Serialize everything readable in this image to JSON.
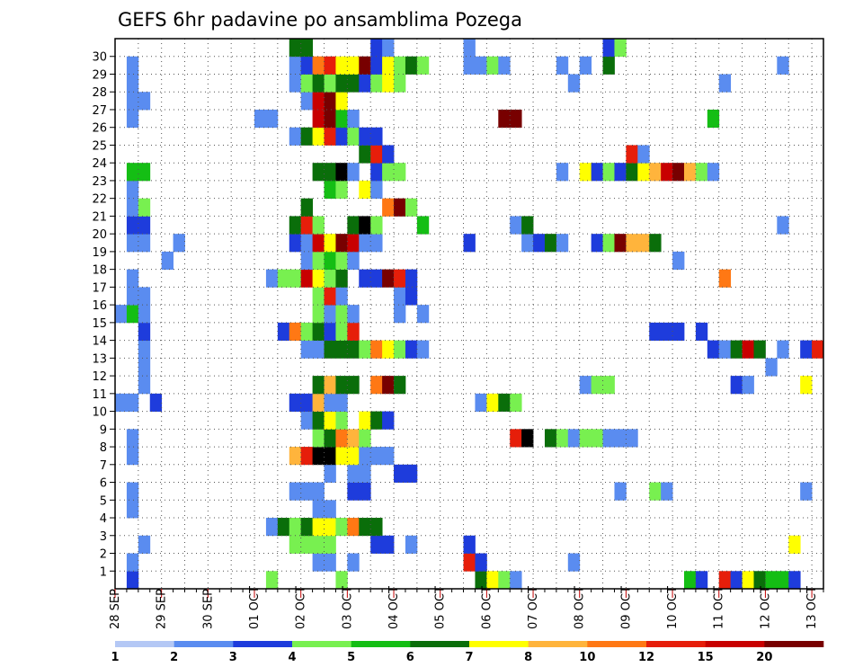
{
  "chart_data": {
    "type": "heatmap",
    "title": "GEFS 6hr padavine po ansamblima Pozega",
    "xlabel": "",
    "ylabel": "",
    "x_tick_labels": [
      "28 SEP",
      "29 SEP",
      "30 SEP",
      "01 OCT",
      "02 OCT",
      "03 OCT",
      "04 OCT",
      "05 OCT",
      "06 OCT",
      "07 OCT",
      "08 OCT",
      "09 OCT",
      "10 OCT",
      "11 OCT",
      "12 OCT",
      "13 OCT"
    ],
    "y_tick_labels": [
      "1",
      "2",
      "3",
      "4",
      "5",
      "6",
      "7",
      "8",
      "9",
      "10",
      "11",
      "12",
      "13",
      "14",
      "15",
      "16",
      "17",
      "18",
      "19",
      "20",
      "21",
      "22",
      "23",
      "24",
      "25",
      "26",
      "27",
      "28",
      "29",
      "30"
    ],
    "members": [
      0,
      1,
      2,
      3,
      4,
      5,
      6,
      7,
      8,
      9,
      10,
      11,
      12,
      13,
      14,
      15,
      16,
      17,
      18,
      19,
      20,
      21,
      22,
      23,
      24,
      25,
      26,
      27,
      28,
      29,
      30
    ],
    "time_step_hours": 6,
    "time_steps": 61,
    "grid": true,
    "legend_position": "bottom",
    "colorbar": {
      "boundaries": [
        "1",
        "2",
        "3",
        "4",
        "5",
        "6",
        "7",
        "8",
        "10",
        "12",
        "15",
        "20"
      ],
      "colors": [
        "#b4c8f5",
        "#5a8cf0",
        "#1e3cdc",
        "#78f050",
        "#14be14",
        "#0a6e0a",
        "#ffff00",
        "#ffb43c",
        "#ff7814",
        "#e61e0a",
        "#c80000",
        "#780000"
      ]
    },
    "cells": [
      [
        0,
        1,
        2
      ],
      [
        0,
        13,
        3
      ],
      [
        0,
        19,
        3
      ],
      [
        0,
        31,
        5
      ],
      [
        0,
        32,
        6
      ],
      [
        0,
        33,
        3
      ],
      [
        0,
        34,
        1
      ],
      [
        0,
        49,
        4
      ],
      [
        0,
        50,
        2
      ],
      [
        0,
        52,
        9
      ],
      [
        0,
        53,
        2
      ],
      [
        0,
        54,
        6
      ],
      [
        0,
        55,
        5
      ],
      [
        0,
        56,
        4
      ],
      [
        0,
        57,
        4
      ],
      [
        0,
        58,
        2
      ],
      [
        1,
        1,
        1
      ],
      [
        1,
        17,
        1
      ],
      [
        1,
        18,
        1
      ],
      [
        1,
        20,
        1
      ],
      [
        1,
        30,
        9
      ],
      [
        1,
        31,
        2
      ],
      [
        1,
        39,
        1
      ],
      [
        2,
        2,
        1
      ],
      [
        2,
        15,
        3
      ],
      [
        2,
        16,
        3
      ],
      [
        2,
        17,
        3
      ],
      [
        2,
        18,
        3
      ],
      [
        2,
        22,
        2
      ],
      [
        2,
        23,
        2
      ],
      [
        2,
        25,
        1
      ],
      [
        2,
        30,
        2
      ],
      [
        2,
        58,
        6
      ],
      [
        3,
        13,
        1
      ],
      [
        3,
        14,
        5
      ],
      [
        3,
        15,
        3
      ],
      [
        3,
        16,
        5
      ],
      [
        3,
        17,
        6
      ],
      [
        3,
        18,
        6
      ],
      [
        3,
        19,
        3
      ],
      [
        3,
        20,
        8
      ],
      [
        3,
        21,
        5
      ],
      [
        3,
        22,
        5
      ],
      [
        4,
        1,
        1
      ],
      [
        4,
        17,
        1
      ],
      [
        4,
        18,
        1
      ],
      [
        5,
        1,
        1
      ],
      [
        5,
        15,
        1
      ],
      [
        5,
        16,
        1
      ],
      [
        5,
        17,
        1
      ],
      [
        5,
        20,
        2
      ],
      [
        5,
        21,
        2
      ],
      [
        5,
        43,
        1
      ],
      [
        5,
        46,
        3
      ],
      [
        5,
        47,
        1
      ],
      [
        5,
        59,
        1
      ],
      [
        6,
        18,
        1
      ],
      [
        6,
        20,
        1
      ],
      [
        6,
        21,
        1
      ],
      [
        6,
        24,
        2
      ],
      [
        6,
        25,
        2
      ],
      [
        7,
        1,
        1
      ],
      [
        7,
        15,
        7
      ],
      [
        7,
        16,
        9
      ],
      [
        7,
        17,
        12
      ],
      [
        7,
        18,
        12
      ],
      [
        7,
        19,
        6
      ],
      [
        7,
        20,
        6
      ],
      [
        7,
        21,
        1
      ],
      [
        7,
        22,
        1
      ],
      [
        7,
        23,
        1
      ],
      [
        8,
        1,
        1
      ],
      [
        8,
        17,
        3
      ],
      [
        8,
        18,
        5
      ],
      [
        8,
        19,
        8
      ],
      [
        8,
        20,
        7
      ],
      [
        8,
        21,
        3
      ],
      [
        8,
        34,
        9
      ],
      [
        8,
        35,
        12
      ],
      [
        8,
        37,
        5
      ],
      [
        8,
        38,
        3
      ],
      [
        8,
        39,
        1
      ],
      [
        8,
        40,
        3
      ],
      [
        8,
        41,
        3
      ],
      [
        8,
        42,
        1
      ],
      [
        8,
        43,
        1
      ],
      [
        8,
        44,
        1
      ],
      [
        9,
        16,
        1
      ],
      [
        9,
        17,
        5
      ],
      [
        9,
        18,
        6
      ],
      [
        9,
        19,
        3
      ],
      [
        9,
        21,
        6
      ],
      [
        9,
        22,
        5
      ],
      [
        9,
        23,
        2
      ],
      [
        10,
        0,
        1
      ],
      [
        10,
        1,
        1
      ],
      [
        10,
        3,
        2
      ],
      [
        10,
        15,
        2
      ],
      [
        10,
        16,
        2
      ],
      [
        10,
        17,
        7
      ],
      [
        10,
        18,
        1
      ],
      [
        10,
        19,
        1
      ],
      [
        10,
        31,
        1
      ],
      [
        10,
        32,
        6
      ],
      [
        10,
        33,
        5
      ],
      [
        10,
        34,
        3
      ],
      [
        11,
        2,
        1
      ],
      [
        11,
        17,
        5
      ],
      [
        11,
        18,
        7
      ],
      [
        11,
        19,
        5
      ],
      [
        11,
        20,
        5
      ],
      [
        11,
        22,
        8
      ],
      [
        11,
        23,
        11
      ],
      [
        11,
        24,
        5
      ],
      [
        11,
        40,
        1
      ],
      [
        11,
        41,
        3
      ],
      [
        11,
        42,
        3
      ],
      [
        11,
        53,
        2
      ],
      [
        11,
        54,
        1
      ],
      [
        11,
        59,
        6
      ],
      [
        12,
        2,
        1
      ],
      [
        12,
        56,
        1
      ],
      [
        13,
        2,
        1
      ],
      [
        13,
        16,
        1
      ],
      [
        13,
        17,
        1
      ],
      [
        13,
        18,
        5
      ],
      [
        13,
        19,
        5
      ],
      [
        13,
        20,
        5
      ],
      [
        13,
        21,
        3
      ],
      [
        13,
        22,
        8
      ],
      [
        13,
        23,
        6
      ],
      [
        13,
        24,
        3
      ],
      [
        13,
        25,
        2
      ],
      [
        13,
        26,
        1
      ],
      [
        13,
        51,
        2
      ],
      [
        13,
        52,
        1
      ],
      [
        13,
        53,
        5
      ],
      [
        13,
        54,
        10
      ],
      [
        13,
        55,
        5
      ],
      [
        13,
        57,
        1
      ],
      [
        13,
        59,
        2
      ],
      [
        13,
        60,
        9
      ],
      [
        14,
        2,
        2
      ],
      [
        14,
        14,
        2
      ],
      [
        14,
        15,
        8
      ],
      [
        14,
        16,
        3
      ],
      [
        14,
        17,
        5
      ],
      [
        14,
        18,
        2
      ],
      [
        14,
        19,
        3
      ],
      [
        14,
        20,
        9
      ],
      [
        14,
        46,
        2
      ],
      [
        14,
        47,
        2
      ],
      [
        14,
        48,
        2
      ],
      [
        14,
        50,
        2
      ],
      [
        15,
        0,
        1
      ],
      [
        15,
        1,
        4
      ],
      [
        15,
        2,
        1
      ],
      [
        15,
        17,
        3
      ],
      [
        15,
        18,
        1
      ],
      [
        15,
        19,
        3
      ],
      [
        15,
        20,
        1
      ],
      [
        15,
        24,
        1
      ],
      [
        15,
        26,
        1
      ],
      [
        16,
        1,
        1
      ],
      [
        16,
        2,
        1
      ],
      [
        16,
        17,
        3
      ],
      [
        16,
        18,
        9
      ],
      [
        16,
        19,
        1
      ],
      [
        16,
        24,
        1
      ],
      [
        16,
        25,
        2
      ],
      [
        17,
        1,
        1
      ],
      [
        17,
        13,
        1
      ],
      [
        17,
        14,
        3
      ],
      [
        17,
        15,
        3
      ],
      [
        17,
        16,
        10
      ],
      [
        17,
        17,
        6
      ],
      [
        17,
        18,
        3
      ],
      [
        17,
        19,
        5
      ],
      [
        17,
        21,
        2
      ],
      [
        17,
        22,
        2
      ],
      [
        17,
        23,
        11
      ],
      [
        17,
        24,
        9
      ],
      [
        17,
        25,
        2
      ],
      [
        17,
        52,
        8
      ],
      [
        18,
        4,
        1
      ],
      [
        18,
        16,
        1
      ],
      [
        18,
        17,
        3
      ],
      [
        18,
        18,
        4
      ],
      [
        18,
        19,
        3
      ],
      [
        18,
        20,
        1
      ],
      [
        18,
        48,
        1
      ],
      [
        19,
        1,
        1
      ],
      [
        19,
        2,
        1
      ],
      [
        19,
        5,
        1
      ],
      [
        19,
        15,
        2
      ],
      [
        19,
        16,
        1
      ],
      [
        19,
        17,
        10
      ],
      [
        19,
        18,
        6
      ],
      [
        19,
        19,
        11
      ],
      [
        19,
        20,
        10
      ],
      [
        19,
        21,
        1
      ],
      [
        19,
        22,
        1
      ],
      [
        19,
        30,
        2
      ],
      [
        19,
        35,
        1
      ],
      [
        19,
        36,
        2
      ],
      [
        19,
        37,
        5
      ],
      [
        19,
        38,
        1
      ],
      [
        19,
        41,
        2
      ],
      [
        19,
        42,
        3
      ],
      [
        19,
        43,
        11
      ],
      [
        19,
        44,
        7
      ],
      [
        19,
        45,
        7
      ],
      [
        19,
        46,
        5
      ],
      [
        20,
        1,
        2
      ],
      [
        20,
        2,
        2
      ],
      [
        20,
        15,
        5
      ],
      [
        20,
        16,
        9
      ],
      [
        20,
        17,
        3
      ],
      [
        20,
        20,
        5
      ],
      [
        20,
        21,
        12
      ],
      [
        20,
        22,
        3
      ],
      [
        20,
        26,
        4
      ],
      [
        20,
        34,
        1
      ],
      [
        20,
        35,
        5
      ],
      [
        20,
        57,
        1
      ],
      [
        21,
        1,
        1
      ],
      [
        21,
        2,
        3
      ],
      [
        21,
        16,
        5
      ],
      [
        21,
        23,
        8
      ],
      [
        21,
        24,
        11
      ],
      [
        21,
        25,
        3
      ],
      [
        22,
        1,
        1
      ],
      [
        22,
        18,
        4
      ],
      [
        22,
        19,
        3
      ],
      [
        22,
        21,
        6
      ],
      [
        22,
        22,
        1
      ],
      [
        23,
        1,
        4
      ],
      [
        23,
        2,
        4
      ],
      [
        23,
        17,
        5
      ],
      [
        23,
        18,
        5
      ],
      [
        23,
        19,
        12
      ],
      [
        23,
        20,
        1
      ],
      [
        23,
        22,
        2
      ],
      [
        23,
        23,
        3
      ],
      [
        23,
        24,
        3
      ],
      [
        23,
        38,
        1
      ],
      [
        23,
        40,
        6
      ],
      [
        23,
        41,
        2
      ],
      [
        23,
        42,
        3
      ],
      [
        23,
        43,
        2
      ],
      [
        23,
        44,
        5
      ],
      [
        23,
        45,
        6
      ],
      [
        23,
        46,
        7
      ],
      [
        23,
        47,
        10
      ],
      [
        23,
        48,
        11
      ],
      [
        23,
        49,
        7
      ],
      [
        23,
        50,
        3
      ],
      [
        23,
        51,
        1
      ],
      [
        24,
        21,
        5
      ],
      [
        24,
        22,
        9
      ],
      [
        24,
        23,
        2
      ],
      [
        24,
        44,
        9
      ],
      [
        24,
        45,
        1
      ],
      [
        25,
        15,
        1
      ],
      [
        25,
        16,
        5
      ],
      [
        25,
        17,
        6
      ],
      [
        25,
        18,
        9
      ],
      [
        25,
        19,
        2
      ],
      [
        25,
        20,
        3
      ],
      [
        25,
        21,
        2
      ],
      [
        25,
        22,
        2
      ],
      [
        26,
        1,
        1
      ],
      [
        26,
        12,
        1
      ],
      [
        26,
        13,
        1
      ],
      [
        26,
        17,
        10
      ],
      [
        26,
        18,
        11
      ],
      [
        26,
        19,
        4
      ],
      [
        26,
        20,
        1
      ],
      [
        26,
        33,
        11
      ],
      [
        26,
        34,
        11
      ],
      [
        26,
        51,
        4
      ],
      [
        27,
        1,
        1
      ],
      [
        27,
        2,
        1
      ],
      [
        27,
        16,
        1
      ],
      [
        27,
        17,
        10
      ],
      [
        27,
        18,
        11
      ],
      [
        27,
        19,
        6
      ],
      [
        28,
        1,
        1
      ],
      [
        28,
        15,
        1
      ],
      [
        28,
        16,
        3
      ],
      [
        28,
        17,
        5
      ],
      [
        28,
        18,
        3
      ],
      [
        28,
        19,
        5
      ],
      [
        28,
        20,
        5
      ],
      [
        28,
        21,
        2
      ],
      [
        28,
        22,
        3
      ],
      [
        28,
        23,
        6
      ],
      [
        28,
        24,
        3
      ],
      [
        28,
        39,
        1
      ],
      [
        28,
        52,
        1
      ],
      [
        29,
        1,
        1
      ],
      [
        29,
        15,
        1
      ],
      [
        29,
        16,
        2
      ],
      [
        29,
        17,
        8
      ],
      [
        29,
        18,
        9
      ],
      [
        29,
        19,
        6
      ],
      [
        29,
        20,
        6
      ],
      [
        29,
        21,
        11
      ],
      [
        29,
        22,
        2
      ],
      [
        29,
        23,
        6
      ],
      [
        29,
        24,
        3
      ],
      [
        29,
        25,
        5
      ],
      [
        29,
        26,
        3
      ],
      [
        29,
        30,
        1
      ],
      [
        29,
        31,
        1
      ],
      [
        29,
        32,
        3
      ],
      [
        29,
        33,
        1
      ],
      [
        29,
        38,
        1
      ],
      [
        29,
        40,
        1
      ],
      [
        29,
        42,
        5
      ],
      [
        29,
        57,
        1
      ],
      [
        30,
        15,
        5
      ],
      [
        30,
        16,
        5
      ],
      [
        30,
        22,
        2
      ],
      [
        30,
        23,
        1
      ],
      [
        30,
        30,
        1
      ],
      [
        30,
        42,
        2
      ],
      [
        30,
        43,
        3
      ]
    ]
  }
}
